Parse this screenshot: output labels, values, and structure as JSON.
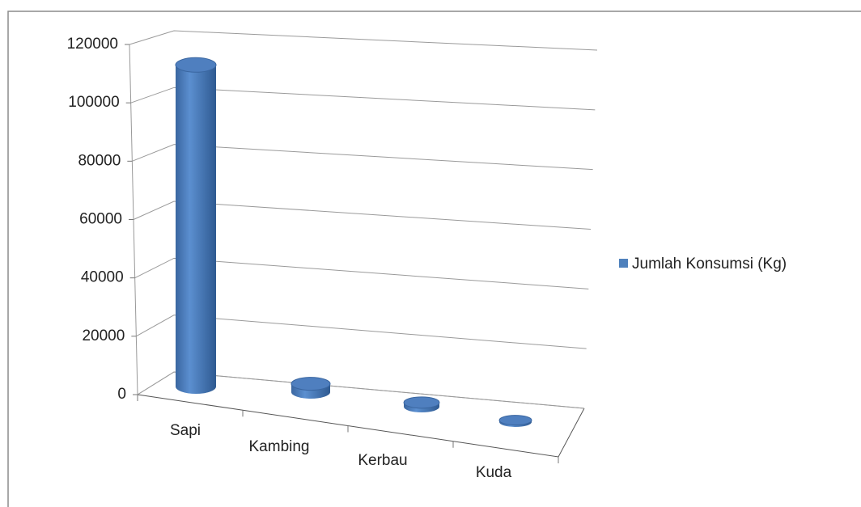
{
  "chart_data": {
    "type": "bar3d",
    "categories": [
      "Sapi",
      "Kambing",
      "Kerbau",
      "Kuda"
    ],
    "series": [
      {
        "name": "Jumlah Konsumsi (Kg)",
        "color": "#4f81bd",
        "values": [
          115000,
          3000,
          1500,
          700
        ]
      }
    ],
    "ylim": [
      0,
      120000
    ],
    "yticks": [
      0,
      20000,
      40000,
      60000,
      80000,
      100000,
      120000
    ],
    "grid": true,
    "legend": "right"
  }
}
